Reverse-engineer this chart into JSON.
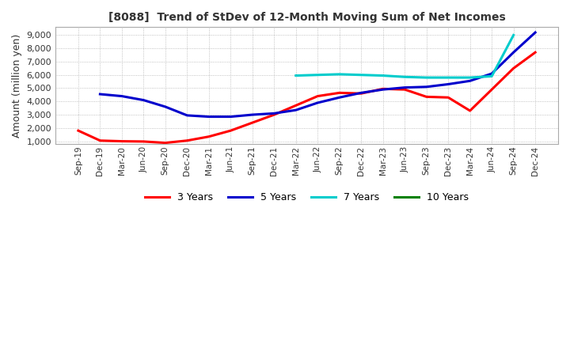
{
  "title": "[8088]  Trend of StDev of 12-Month Moving Sum of Net Incomes",
  "ylabel": "Amount (million yen)",
  "ylim": [
    800,
    9600
  ],
  "yticks": [
    1000,
    2000,
    3000,
    4000,
    5000,
    6000,
    7000,
    8000,
    9000
  ],
  "background_color": "#ffffff",
  "grid_color": "#b0b0b0",
  "x_labels": [
    "Sep-19",
    "Dec-19",
    "Mar-20",
    "Jun-20",
    "Sep-20",
    "Dec-20",
    "Mar-21",
    "Jun-21",
    "Sep-21",
    "Dec-21",
    "Mar-22",
    "Jun-22",
    "Sep-22",
    "Dec-22",
    "Mar-23",
    "Jun-23",
    "Sep-23",
    "Dec-23",
    "Mar-24",
    "Jun-24",
    "Sep-24",
    "Dec-24"
  ],
  "series": {
    "3 Years": {
      "color": "#ff0000",
      "data": [
        1800,
        1050,
        1000,
        980,
        880,
        1050,
        1350,
        1800,
        2400,
        3000,
        3700,
        4400,
        4650,
        4600,
        4950,
        4900,
        4350,
        4300,
        3300,
        4900,
        6500,
        7700
      ]
    },
    "5 Years": {
      "color": "#0000cc",
      "data": [
        null,
        4550,
        4400,
        4100,
        3600,
        2950,
        2850,
        2850,
        3000,
        3100,
        3350,
        3900,
        4300,
        4650,
        4900,
        5050,
        5100,
        5300,
        5550,
        6100,
        7700,
        9200
      ]
    },
    "7 Years": {
      "color": "#00cccc",
      "data": [
        null,
        null,
        null,
        null,
        null,
        null,
        null,
        null,
        null,
        null,
        5950,
        6000,
        6050,
        6000,
        5950,
        5850,
        5800,
        5800,
        5800,
        5900,
        9000,
        null
      ]
    },
    "10 Years": {
      "color": "#008000",
      "data": [
        null,
        null,
        null,
        null,
        null,
        null,
        null,
        null,
        null,
        null,
        null,
        null,
        null,
        null,
        null,
        null,
        null,
        null,
        null,
        null,
        null,
        null
      ]
    }
  },
  "legend_order": [
    "3 Years",
    "5 Years",
    "7 Years",
    "10 Years"
  ]
}
